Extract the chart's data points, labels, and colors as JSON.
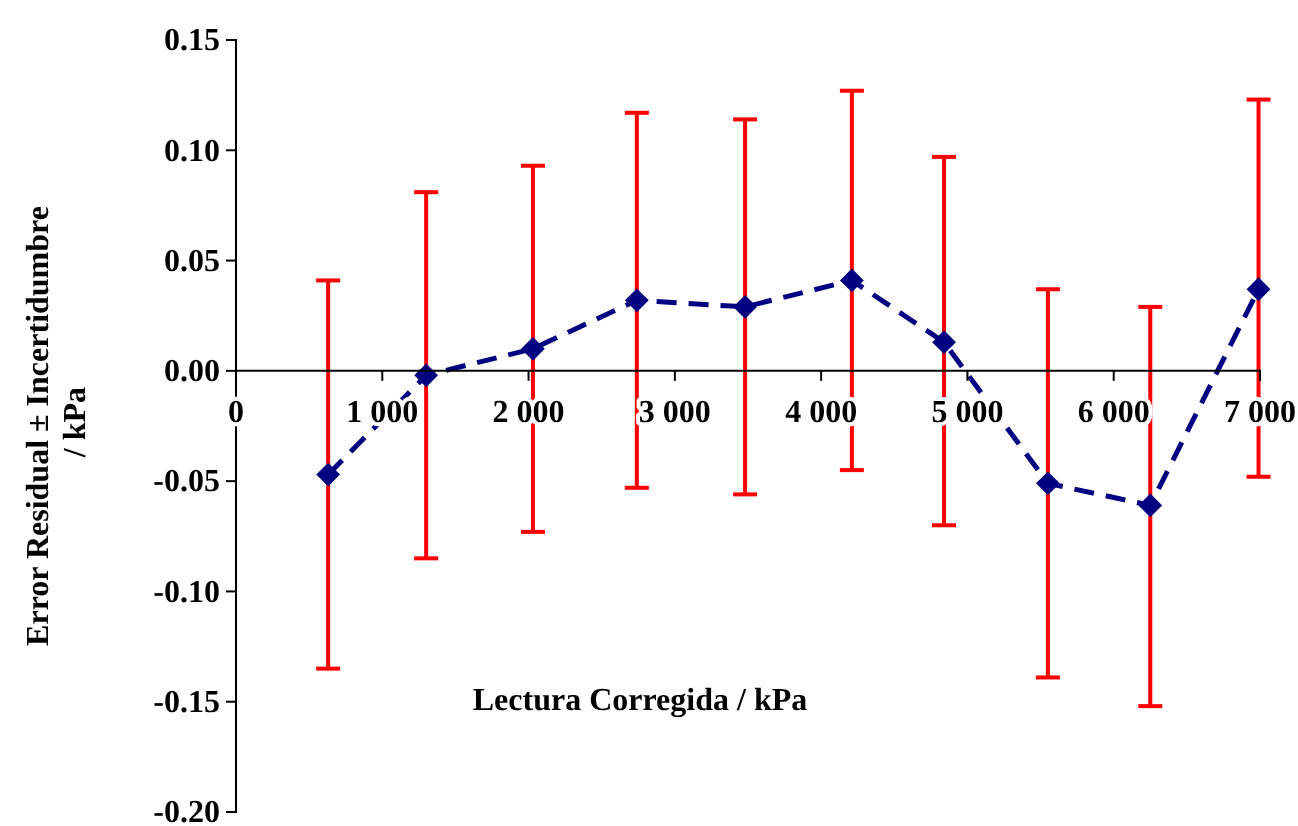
{
  "chart_data": {
    "type": "line",
    "xlabel": "Lectura Corregida / kPa",
    "ylabel": "Error Residual ± Incertidumbre\n / kPa",
    "xlim": [
      0,
      7000
    ],
    "ylim": [
      -0.2,
      0.15
    ],
    "xticks": [
      {
        "value": 0,
        "label": "0"
      },
      {
        "value": 1000,
        "label": "1 000"
      },
      {
        "value": 2000,
        "label": "2 000"
      },
      {
        "value": 3000,
        "label": "3 000"
      },
      {
        "value": 4000,
        "label": "4 000"
      },
      {
        "value": 5000,
        "label": "5 000"
      },
      {
        "value": 6000,
        "label": "6 000"
      },
      {
        "value": 7000,
        "label": "7 000"
      }
    ],
    "yticks": [
      {
        "value": -0.2,
        "label": "-0.20"
      },
      {
        "value": -0.15,
        "label": "-0.15"
      },
      {
        "value": -0.1,
        "label": "-0.10"
      },
      {
        "value": -0.05,
        "label": "-0.05"
      },
      {
        "value": 0,
        "label": "0.00"
      },
      {
        "value": 0.05,
        "label": "0.05"
      },
      {
        "value": 0.1,
        "label": "0.10"
      },
      {
        "value": 0.15,
        "label": "0.15"
      }
    ],
    "marker": "diamond",
    "line_style": "dashed",
    "grid": false,
    "series": [
      {
        "color": "#000080",
        "x": [
          630,
          1300,
          2030,
          2740,
          3480,
          4210,
          4840,
          5550,
          6250,
          6990
        ],
        "values": [
          -0.047,
          -0.002,
          0.01,
          0.032,
          0.029,
          0.041,
          0.013,
          -0.051,
          -0.061,
          0.037
        ],
        "errors": [
          [
            -0.135,
            0.041
          ],
          [
            -0.085,
            0.081
          ],
          [
            -0.073,
            0.093
          ],
          [
            -0.053,
            0.117
          ],
          [
            -0.056,
            0.114
          ],
          [
            -0.045,
            0.127
          ],
          [
            -0.07,
            0.097
          ],
          [
            -0.139,
            0.037
          ],
          [
            -0.152,
            0.029
          ],
          [
            -0.048,
            0.123
          ]
        ]
      }
    ]
  }
}
